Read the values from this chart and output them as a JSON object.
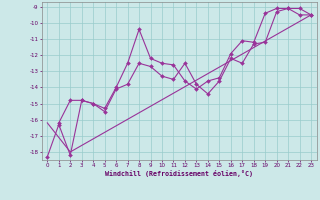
{
  "xlabel": "Windchill (Refroidissement éolien,°C)",
  "background_color": "#cce8e8",
  "grid_color": "#99cccc",
  "line_color": "#993399",
  "xlim": [
    -0.5,
    23.5
  ],
  "ylim": [
    -18.5,
    -8.7
  ],
  "xticks": [
    0,
    1,
    2,
    3,
    4,
    5,
    6,
    7,
    8,
    9,
    10,
    11,
    12,
    13,
    14,
    15,
    16,
    17,
    18,
    19,
    20,
    21,
    22,
    23
  ],
  "yticks": [
    -9,
    -10,
    -11,
    -12,
    -13,
    -14,
    -15,
    -16,
    -17,
    -18
  ],
  "line1_x": [
    1,
    2,
    3,
    4,
    5,
    6,
    7,
    8,
    9,
    10,
    11,
    12,
    13,
    14,
    15,
    16,
    17,
    18,
    19,
    20,
    21,
    22,
    23
  ],
  "line1_y": [
    -16.2,
    -14.8,
    -14.8,
    -15.0,
    -15.3,
    -14.0,
    -12.5,
    -10.4,
    -12.2,
    -12.5,
    -12.6,
    -13.6,
    -14.1,
    -13.6,
    -13.4,
    -11.9,
    -11.1,
    -11.2,
    -9.4,
    -9.1,
    -9.1,
    -9.5,
    -9.5
  ],
  "line2_x": [
    0,
    1,
    2,
    3,
    4,
    5,
    6,
    7,
    8,
    9,
    10,
    11,
    12,
    13,
    14,
    15,
    16,
    17,
    18,
    19,
    20,
    21,
    22,
    23
  ],
  "line2_y": [
    -18.3,
    -16.3,
    -18.2,
    -14.8,
    -15.0,
    -15.5,
    -14.1,
    -13.8,
    -12.5,
    -12.7,
    -13.3,
    -13.5,
    -12.5,
    -13.8,
    -14.4,
    -13.6,
    -12.2,
    -12.5,
    -11.3,
    -11.2,
    -9.3,
    -9.1,
    -9.1,
    -9.5
  ],
  "line3_x": [
    0,
    2,
    23
  ],
  "line3_y": [
    -16.2,
    -18.0,
    -9.5
  ]
}
